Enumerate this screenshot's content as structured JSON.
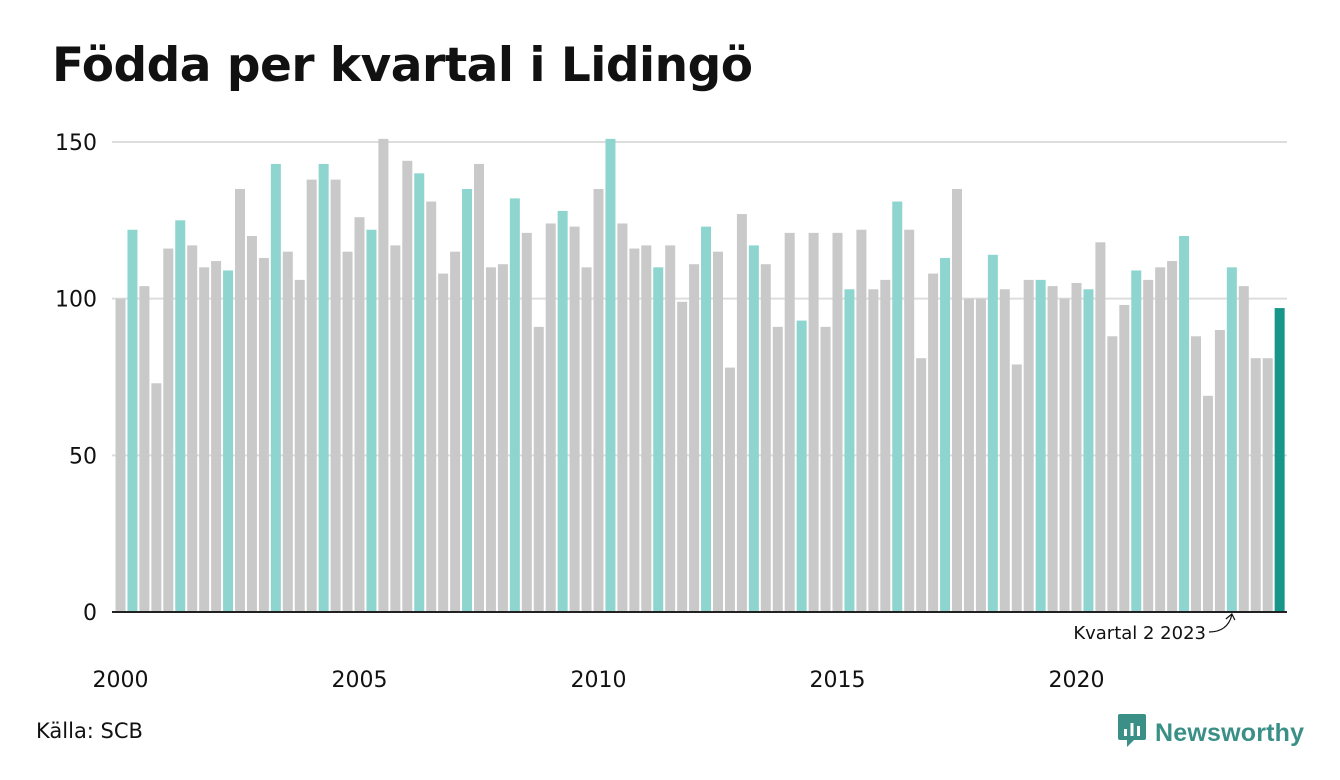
{
  "page": {
    "title": "Födda per kvartal i Lidingö",
    "source": "Källa: SCB",
    "brand": "Newsworthy"
  },
  "colors": {
    "bar_default": "#c9c9c9",
    "bar_highlight": "#8dd5ce",
    "bar_latest": "#17968a",
    "grid": "#dddddd",
    "axis": "#222222",
    "brand": "#3a8f86"
  },
  "chart_data": {
    "type": "bar",
    "title": "Födda per kvartal i Lidingö",
    "xlabel": "",
    "ylabel": "",
    "ylim": [
      0,
      150
    ],
    "yticks": [
      0,
      50,
      100,
      150
    ],
    "x_tick_labels": [
      "2000",
      "2005",
      "2010",
      "2015",
      "2020"
    ],
    "grid": true,
    "highlight_quarter": "Q2",
    "categories": [
      "2000 Q1",
      "2000 Q2",
      "2000 Q3",
      "2000 Q4",
      "2001 Q1",
      "2001 Q2",
      "2001 Q3",
      "2001 Q4",
      "2002 Q1",
      "2002 Q2",
      "2002 Q3",
      "2002 Q4",
      "2003 Q1",
      "2003 Q2",
      "2003 Q3",
      "2003 Q4",
      "2004 Q1",
      "2004 Q2",
      "2004 Q3",
      "2004 Q4",
      "2005 Q1",
      "2005 Q2",
      "2005 Q3",
      "2005 Q4",
      "2006 Q1",
      "2006 Q2",
      "2006 Q3",
      "2006 Q4",
      "2007 Q1",
      "2007 Q2",
      "2007 Q3",
      "2007 Q4",
      "2008 Q1",
      "2008 Q2",
      "2008 Q3",
      "2008 Q4",
      "2009 Q1",
      "2009 Q2",
      "2009 Q3",
      "2009 Q4",
      "2010 Q1",
      "2010 Q2",
      "2010 Q3",
      "2010 Q4",
      "2011 Q1",
      "2011 Q2",
      "2011 Q3",
      "2011 Q4",
      "2012 Q1",
      "2012 Q2",
      "2012 Q3",
      "2012 Q4",
      "2013 Q1",
      "2013 Q2",
      "2013 Q3",
      "2013 Q4",
      "2014 Q1",
      "2014 Q2",
      "2014 Q3",
      "2014 Q4",
      "2015 Q1",
      "2015 Q2",
      "2015 Q3",
      "2015 Q4",
      "2016 Q1",
      "2016 Q2",
      "2016 Q3",
      "2016 Q4",
      "2017 Q1",
      "2017 Q2",
      "2017 Q3",
      "2017 Q4",
      "2018 Q1",
      "2018 Q2",
      "2018 Q3",
      "2018 Q4",
      "2019 Q1",
      "2019 Q2",
      "2019 Q3",
      "2019 Q4",
      "2020 Q1",
      "2020 Q2",
      "2020 Q3",
      "2020 Q4",
      "2021 Q1",
      "2021 Q2",
      "2021 Q3",
      "2021 Q4",
      "2022 Q1",
      "2022 Q2",
      "2022 Q3",
      "2022 Q4",
      "2023 Q1",
      "2023 Q2",
      "2023 Q3",
      "2023 Q4",
      "2024 Q1",
      "2024 Q2"
    ],
    "values": [
      100,
      122,
      104,
      73,
      116,
      125,
      117,
      110,
      112,
      109,
      135,
      120,
      113,
      143,
      115,
      106,
      138,
      143,
      138,
      115,
      126,
      122,
      151,
      117,
      144,
      140,
      131,
      108,
      115,
      135,
      143,
      110,
      111,
      132,
      121,
      91,
      124,
      128,
      123,
      110,
      135,
      151,
      124,
      116,
      117,
      110,
      117,
      99,
      111,
      123,
      115,
      78,
      127,
      117,
      111,
      91,
      121,
      93,
      121,
      91,
      121,
      103,
      122,
      103,
      106,
      131,
      122,
      81,
      108,
      113,
      135,
      100,
      100,
      114,
      103,
      79,
      106,
      106,
      104,
      100,
      105,
      103,
      118,
      88,
      98,
      109,
      106,
      110,
      112,
      120,
      88,
      69,
      90,
      110,
      104,
      81,
      81,
      97
    ],
    "annotation": {
      "text": "Kvartal 2 2023",
      "target": "2023 Q2"
    }
  }
}
